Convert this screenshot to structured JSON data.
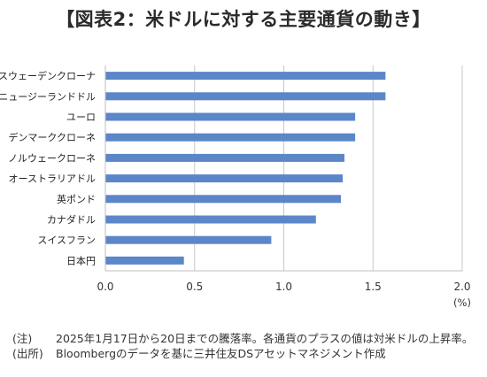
{
  "title": "【図表2：米ドルに対する主要通貨の動き】",
  "chart_data": {
    "type": "bar",
    "orientation": "horizontal",
    "categories": [
      "スウェーデンクローナ",
      "ニュージーランドドル",
      "ユーロ",
      "デンマーククローネ",
      "ノルウェークローネ",
      "オーストラリアドル",
      "英ポンド",
      "カナダドル",
      "スイスフラン",
      "日本円"
    ],
    "values": [
      1.57,
      1.57,
      1.4,
      1.4,
      1.34,
      1.33,
      1.32,
      1.18,
      0.93,
      0.44
    ],
    "xlim": [
      0.0,
      2.0
    ],
    "xticks": [
      "0.0",
      "0.5",
      "1.0",
      "1.5",
      "2.0"
    ],
    "unit": "(%)",
    "grid": true,
    "bar_color": "#5b86c8"
  },
  "notes": [
    {
      "tag": "(注)",
      "text": "2025年1月17日から20日までの騰落率。各通貨のプラスの値は対米ドルの上昇率。"
    },
    {
      "tag": "(出所)",
      "text": "Bloombergのデータを基に三井住友DSアセットマネジメント作成"
    }
  ]
}
